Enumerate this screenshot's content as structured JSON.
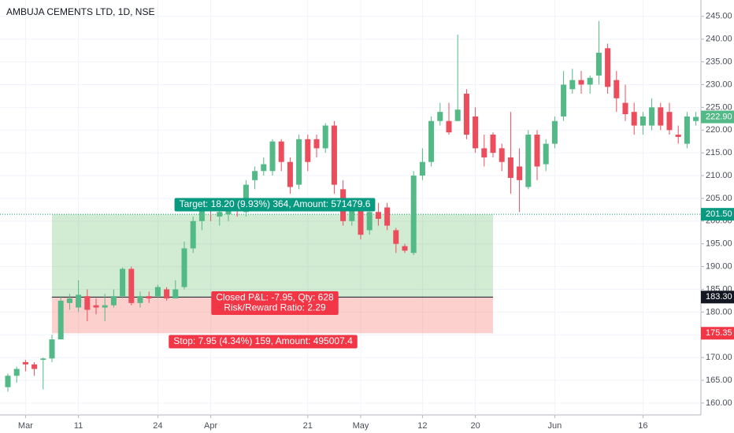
{
  "chart_data": {
    "type": "candlestick",
    "title": "AMBUJA CEMENTS LTD, 1D, NSE",
    "categories": [
      null,
      null,
      "Mar",
      null,
      null,
      null,
      null,
      null,
      "11",
      null,
      null,
      null,
      null,
      null,
      null,
      null,
      null,
      "24",
      null,
      null,
      null,
      null,
      null,
      "Apr",
      null,
      null,
      null,
      null,
      null,
      null,
      null,
      null,
      null,
      null,
      "21",
      null,
      null,
      null,
      null,
      null,
      "May",
      null,
      null,
      null,
      null,
      null,
      null,
      "12",
      null,
      null,
      null,
      null,
      null,
      "20",
      null,
      null,
      null,
      null,
      null,
      null,
      null,
      null,
      "Jun",
      null,
      null,
      null,
      null,
      null,
      null,
      null,
      null,
      null,
      "16",
      null,
      null,
      null,
      null,
      null,
      null
    ],
    "open": [
      163.5,
      166,
      169,
      168.5,
      169.5,
      169.8,
      174,
      182,
      181,
      183.5,
      181.5,
      181,
      181.5,
      183.5,
      189.5,
      182,
      183.5,
      183.5,
      185,
      183,
      185.5,
      194,
      200,
      203,
      201,
      201.5,
      204,
      202,
      209,
      211,
      211,
      217.5,
      213,
      208,
      218,
      218,
      216,
      221,
      207,
      200,
      203,
      198,
      202,
      203,
      198,
      194.5,
      193,
      210,
      213,
      222,
      222,
      222,
      228,
      223,
      216,
      219,
      216,
      214,
      212,
      207.5,
      219,
      212.5,
      217,
      223,
      229,
      231,
      230,
      232,
      238,
      231,
      226,
      224,
      221,
      221,
      225,
      224,
      219,
      217,
      222
    ],
    "high": [
      166.5,
      168,
      169.5,
      169,
      170,
      175,
      183.5,
      184,
      187,
      185,
      183,
      184,
      185,
      189.8,
      190,
      184.5,
      184.5,
      186,
      185.5,
      187,
      195.5,
      201,
      204,
      204,
      203,
      205,
      205,
      209,
      212,
      214,
      218,
      218,
      214,
      219,
      219,
      219,
      221.5,
      222,
      209,
      205,
      204,
      204,
      204,
      204,
      198.5,
      195,
      211,
      216,
      223,
      226,
      226,
      241,
      229,
      225,
      219,
      219.5,
      217,
      224,
      216,
      220,
      220,
      218,
      223,
      233,
      233.5,
      233,
      232,
      244,
      239,
      233,
      230,
      226,
      224,
      227,
      226,
      226,
      221,
      224,
      224
    ],
    "low": [
      162.5,
      164.5,
      167,
      166,
      163,
      169,
      174,
      180.5,
      180,
      178,
      179.5,
      178,
      181,
      183,
      181.5,
      181,
      182,
      183,
      182.5,
      183,
      185,
      193,
      198,
      200,
      199,
      200,
      201,
      201,
      207,
      210,
      210,
      211,
      206,
      207,
      211,
      214,
      215,
      206,
      199,
      199,
      196,
      197,
      199,
      198,
      193,
      193,
      192.5,
      209,
      212,
      221,
      219,
      222,
      218,
      215,
      212,
      214,
      211,
      206,
      202,
      207,
      209,
      211,
      216,
      222,
      228,
      228,
      228,
      230,
      228,
      224,
      222,
      219,
      219,
      220,
      220,
      219,
      217,
      216,
      221
    ],
    "close": [
      166,
      167.5,
      168.5,
      167.5,
      169.8,
      174,
      182.5,
      183,
      183.8,
      180.5,
      181,
      181.5,
      183.5,
      189.5,
      182,
      183.5,
      183,
      185.5,
      183,
      185,
      194,
      200,
      203,
      202.5,
      202,
      203.5,
      203,
      208,
      211,
      212.5,
      217.5,
      213,
      207.5,
      218,
      213,
      216,
      221,
      208,
      200,
      203,
      197,
      202,
      200.5,
      199,
      195,
      193.5,
      210,
      213,
      222,
      224,
      219.5,
      224.5,
      219,
      216,
      214,
      215,
      213,
      209.5,
      209,
      219,
      212,
      217,
      222,
      230,
      231,
      230,
      231.5,
      237,
      229.5,
      227,
      223.5,
      221,
      223,
      225,
      221,
      220,
      218.5,
      223,
      222.9
    ],
    "up_color": "#53b987",
    "down_color": "#eb4d5c",
    "ylim": [
      157.4,
      248.6
    ],
    "yticks": [
      {
        "value": 160,
        "label": "160.00"
      },
      {
        "value": 165,
        "label": "165.00"
      },
      {
        "value": 170,
        "label": "170.00"
      },
      {
        "value": 175,
        "label": "175.00"
      },
      {
        "value": 180,
        "label": "180.00"
      },
      {
        "value": 185,
        "label": "185.00"
      },
      {
        "value": 190,
        "label": "190.00"
      },
      {
        "value": 195,
        "label": "195.00"
      },
      {
        "value": 200,
        "label": "200.00"
      },
      {
        "value": 205,
        "label": "205.00"
      },
      {
        "value": 210,
        "label": "210.00"
      },
      {
        "value": 215,
        "label": "215.00"
      },
      {
        "value": 220,
        "label": "220.00"
      },
      {
        "value": 225,
        "label": "225.00"
      },
      {
        "value": 230,
        "label": "230.00"
      },
      {
        "value": 235,
        "label": "235.00"
      },
      {
        "value": 240,
        "label": "240.00"
      },
      {
        "value": 245,
        "label": "245.00"
      }
    ],
    "grid": true,
    "position": {
      "target": 201.5,
      "entry": 183.3,
      "stop": 175.35,
      "target_label": "Target: 18.20 (9.93%) 364, Amount: 571479.6",
      "pnl_label": "Closed P&L: -7.95, Qty: 628",
      "ratio_label": "Risk/Reward Ratio: 2.29",
      "stop_label": "Stop: 7.95 (4.34%) 159, Amount: 495007.4"
    },
    "price_tags": [
      {
        "value": 222.9,
        "label": "222.90",
        "color": "#53b987"
      },
      {
        "value": 201.5,
        "label": "201.50",
        "color": "#089981"
      },
      {
        "value": 183.3,
        "label": "183.30",
        "color": "#131722"
      },
      {
        "value": 175.35,
        "label": "175.35",
        "color": "#f23645"
      }
    ]
  }
}
